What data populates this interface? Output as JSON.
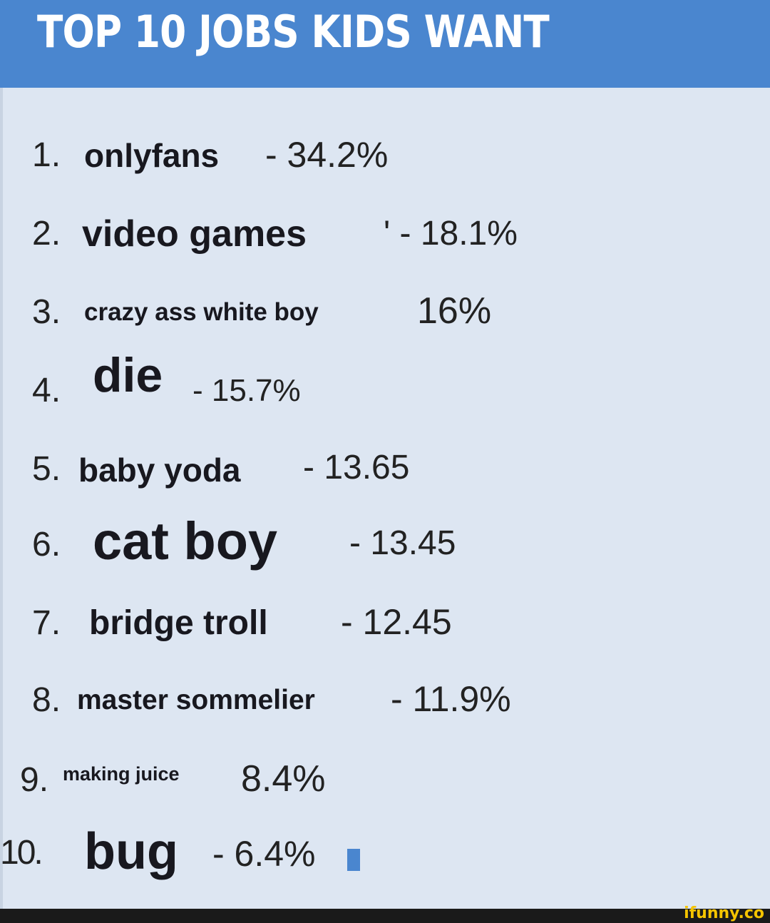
{
  "title": "TOP 10 JOBS KIDS WANT",
  "items": [
    {
      "rank": "1.",
      "job": "onlyfans",
      "value": "- 34.2%"
    },
    {
      "rank": "2.",
      "job": "video games",
      "value": "' - 18.1%"
    },
    {
      "rank": "3.",
      "job": "crazy ass white boy",
      "value": "16%"
    },
    {
      "rank": "4.",
      "job": "die",
      "value": "- 15.7%"
    },
    {
      "rank": "5.",
      "job": "baby yoda",
      "value": "- 13.65"
    },
    {
      "rank": "6.",
      "job": "cat boy",
      "value": "- 13.45"
    },
    {
      "rank": "7.",
      "job": "bridge troll",
      "value": "- 12.45"
    },
    {
      "rank": "8.",
      "job": "master sommelier",
      "value": "- 11.9%"
    },
    {
      "rank": "9.",
      "job": "making juice",
      "value": "8.4%"
    },
    {
      "rank": "10.",
      "job": "bug",
      "value": "- 6.4%"
    }
  ],
  "watermark": "ifunny.co",
  "colors": {
    "header": "#4a86cf",
    "background": "#dde6f2",
    "footer": "#1a1a1a",
    "watermark": "#f5c400"
  }
}
